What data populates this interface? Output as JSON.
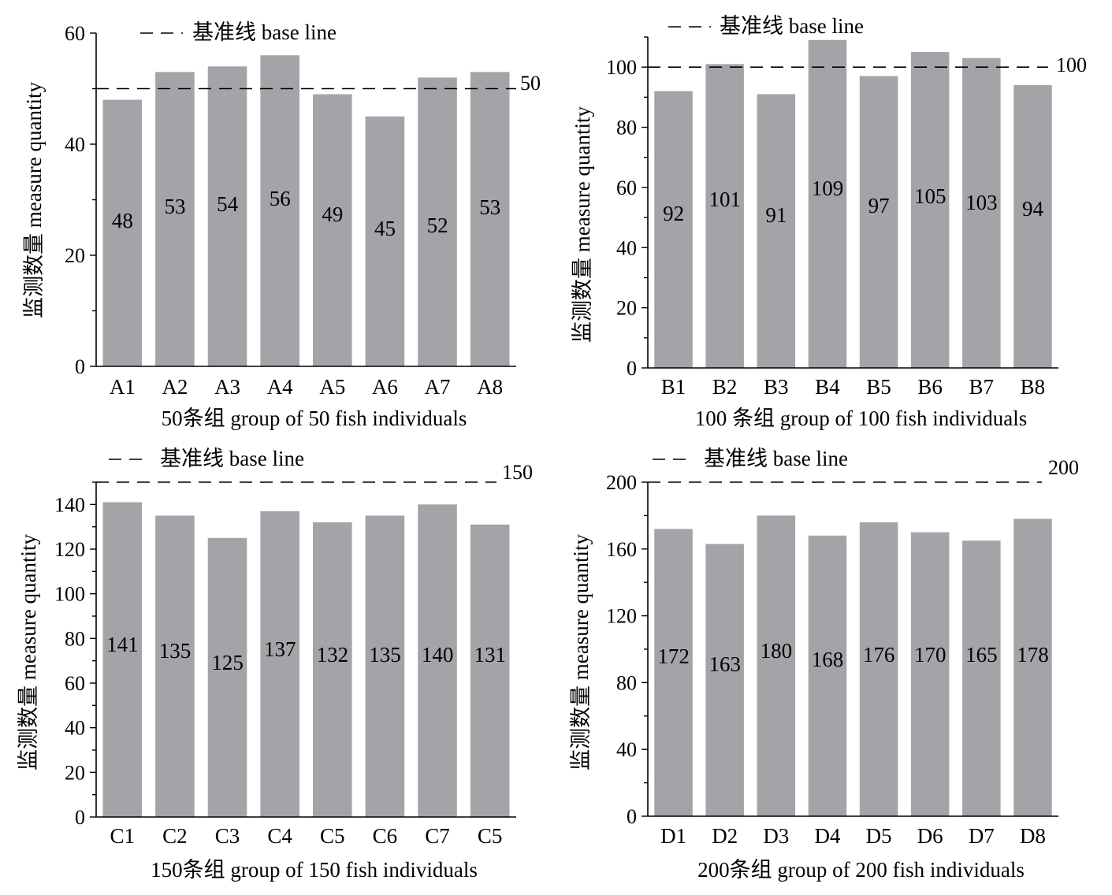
{
  "chart_data": [
    {
      "type": "bar",
      "xlabel": "50条组 group of 50 fish  individuals",
      "ylabel": "监测数量 measure quantity",
      "legend": "基准线 base line",
      "baseline": 50,
      "baseline_label": "50",
      "ylim": [
        0,
        60
      ],
      "yticks": [
        0,
        20,
        40,
        60
      ],
      "categories": [
        "A1",
        "A2",
        "A3",
        "A4",
        "A5",
        "A6",
        "A7",
        "A8"
      ],
      "values": [
        48,
        53,
        54,
        56,
        49,
        45,
        52,
        53
      ],
      "bar_color": "#a3a3a8"
    },
    {
      "type": "bar",
      "xlabel": "100 条组 group of 100 fish  individuals",
      "ylabel": "监测数量 measure quantity",
      "legend": "基准线 base line",
      "baseline": 100,
      "baseline_label": "100",
      "ylim": [
        0,
        110
      ],
      "yticks": [
        0,
        20,
        40,
        60,
        80,
        100
      ],
      "categories": [
        "B1",
        "B2",
        "B3",
        "B4",
        "B5",
        "B6",
        "B7",
        "B8"
      ],
      "values": [
        92,
        101,
        91,
        109,
        97,
        105,
        103,
        94
      ],
      "bar_color": "#a3a3a8"
    },
    {
      "type": "bar",
      "xlabel": "150条组 group of 150 fish  individuals",
      "ylabel": "监测数量 measure quantity",
      "legend": "基准线 base line",
      "baseline": 150,
      "baseline_label": "150",
      "ylim": [
        0,
        150
      ],
      "yticks": [
        0,
        20,
        40,
        60,
        80,
        100,
        120,
        140
      ],
      "categories": [
        "C1",
        "C2",
        "C3",
        "C4",
        "C5",
        "C6",
        "C7",
        "C5"
      ],
      "values": [
        141,
        135,
        125,
        137,
        132,
        135,
        140,
        131
      ],
      "bar_color": "#a3a3a8"
    },
    {
      "type": "bar",
      "xlabel": "200条组 group of 200 fish  individuals",
      "ylabel": "监测数量 measure quantity",
      "legend": "基准线 base line",
      "baseline": 200,
      "baseline_label": "200",
      "ylim": [
        0,
        200
      ],
      "yticks": [
        0,
        40,
        80,
        120,
        160,
        200
      ],
      "categories": [
        "D1",
        "D2",
        "D3",
        "D4",
        "D5",
        "D6",
        "D7",
        "D8"
      ],
      "values": [
        172,
        163,
        180,
        168,
        176,
        170,
        165,
        178
      ],
      "bar_color": "#a3a3a8"
    }
  ]
}
